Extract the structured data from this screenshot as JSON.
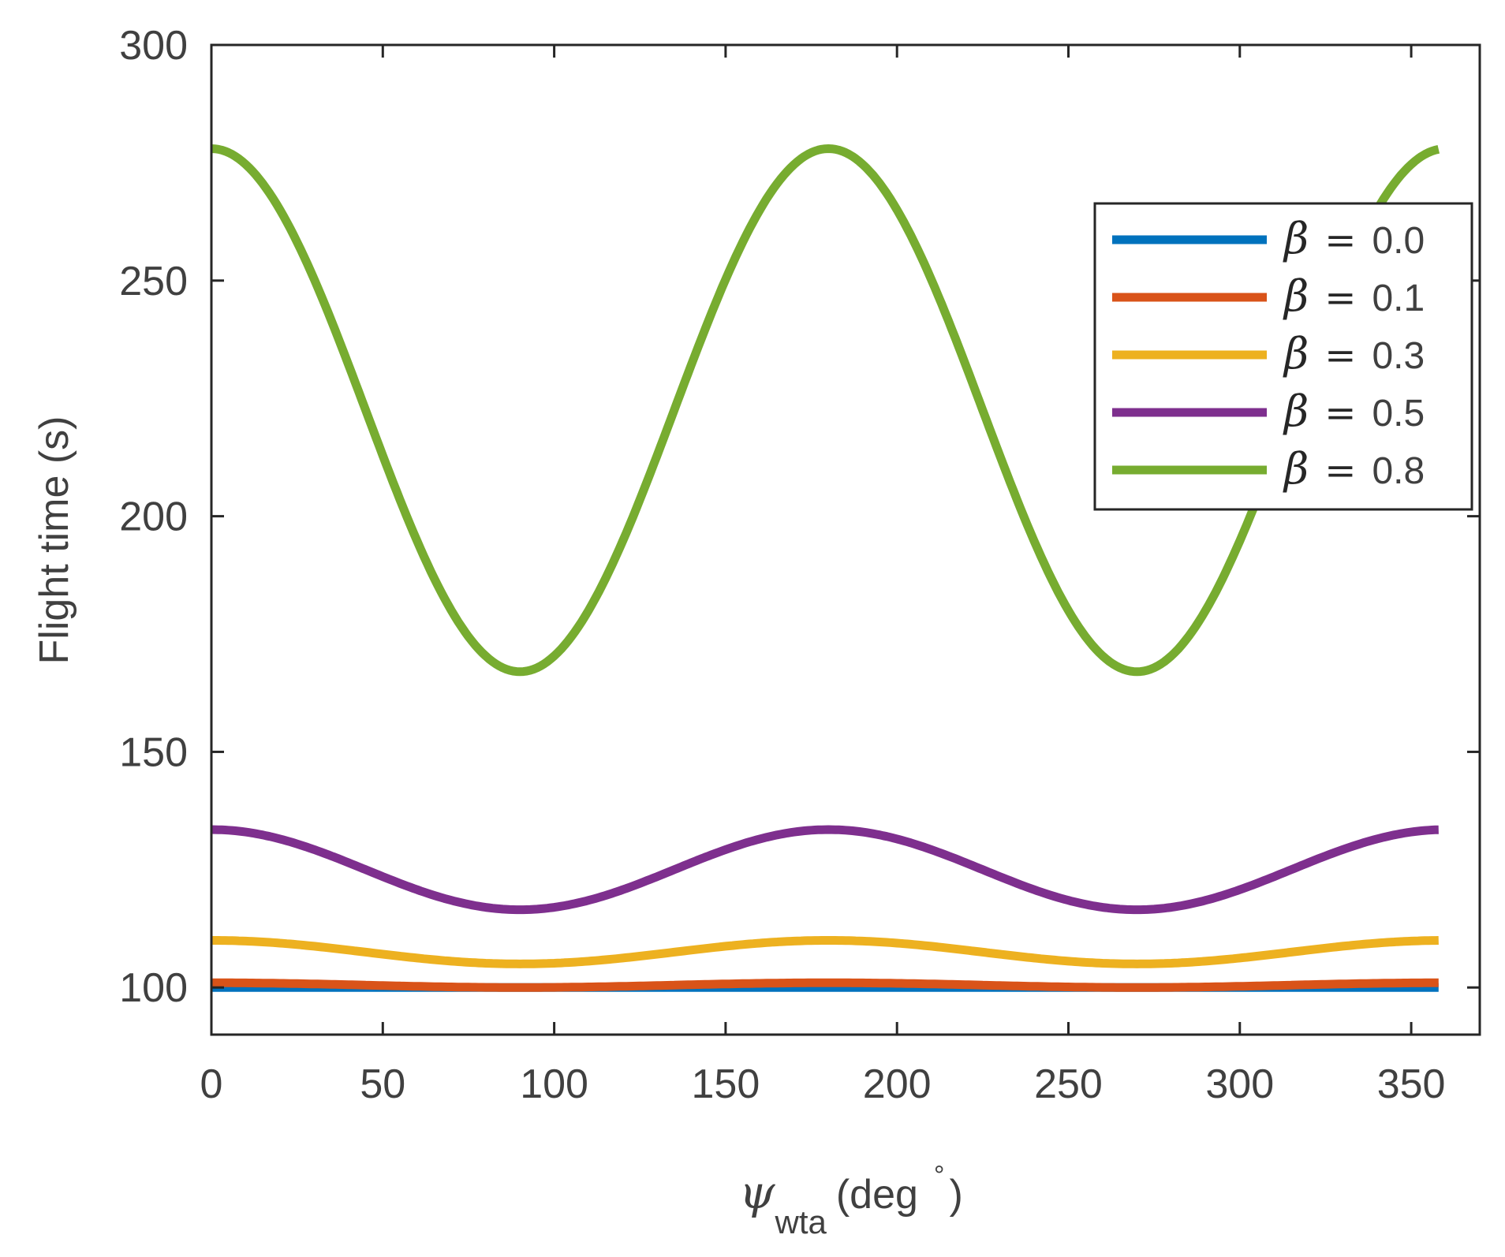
{
  "chart_data": {
    "type": "line",
    "title": "",
    "xlabel": {
      "symbol": "ψ",
      "subscript": "wta",
      "unit_text": "(deg",
      "degree_mark": "°",
      "close": ")"
    },
    "ylabel": "Flight time (s)",
    "xlim": [
      0,
      370
    ],
    "ylim": [
      90,
      300
    ],
    "xticks": [
      0,
      50,
      100,
      150,
      200,
      250,
      300,
      350
    ],
    "yticks": [
      100,
      150,
      200,
      250,
      300
    ],
    "xtick_labels": [
      "0",
      "50",
      "100",
      "150",
      "200",
      "250",
      "300",
      "350"
    ],
    "ytick_labels": [
      "100",
      "150",
      "200",
      "250",
      "300"
    ],
    "grid": false,
    "legend_position": "top-right",
    "x_domain": [
      0,
      358
    ],
    "series": [
      {
        "name": "β = 0.0",
        "symbol": "β",
        "equals": "=",
        "value_text": "0.0",
        "color": "#0072BD",
        "mean": 100,
        "amplitude": 0
      },
      {
        "name": "β = 0.1",
        "symbol": "β",
        "equals": "=",
        "value_text": "0.1",
        "color": "#D95319",
        "mean": 100.5,
        "amplitude": 0.5
      },
      {
        "name": "β = 0.3",
        "symbol": "β",
        "equals": "=",
        "value_text": "0.3",
        "color": "#EDB120",
        "mean": 107.5,
        "amplitude": 2.5
      },
      {
        "name": "β = 0.5",
        "symbol": "β",
        "equals": "=",
        "value_text": "0.5",
        "color": "#7E2F8E",
        "mean": 125,
        "amplitude": 8.5
      },
      {
        "name": "β = 0.8",
        "symbol": "β",
        "equals": "=",
        "value_text": "0.8",
        "color": "#77AC30",
        "mean": 222.5,
        "amplitude": 55.5
      }
    ],
    "curve_model": "y = mean + amplitude * cos(2 * x deg)"
  }
}
